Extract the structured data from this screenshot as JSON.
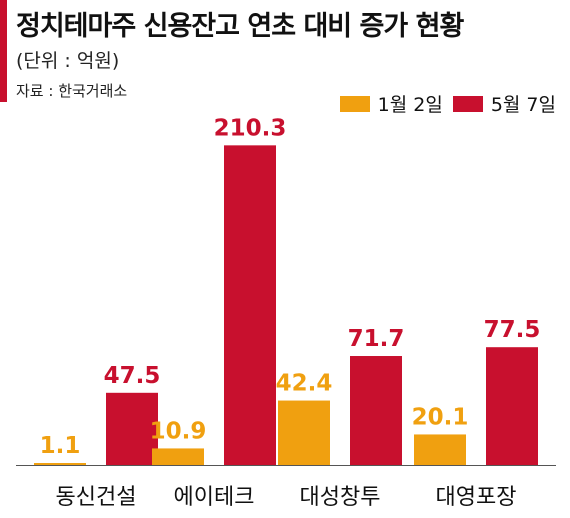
{
  "header": {
    "title": "정치테마주 신용잔고 연초 대비 증가 현황",
    "unit": "(단위 : 억원)",
    "source": "자료 : 한국거래소"
  },
  "colors": {
    "accent": "#c8102e",
    "series1": "#f0a010",
    "series2": "#c8102e"
  },
  "chart_data": {
    "type": "bar",
    "title": "정치테마주 신용잔고 연초 대비 증가 현황",
    "categories": [
      "동신건설",
      "에이테크",
      "대성창투",
      "대영포장"
    ],
    "series": [
      {
        "name": "1월 2일",
        "values": [
          1.1,
          10.9,
          42.4,
          20.1
        ]
      },
      {
        "name": "5월 7일",
        "values": [
          47.5,
          210.3,
          71.7,
          77.5
        ]
      }
    ],
    "xlabel": "",
    "ylabel": "",
    "ylim": [
      0,
      230
    ],
    "grid": false,
    "legend": "top-right"
  }
}
